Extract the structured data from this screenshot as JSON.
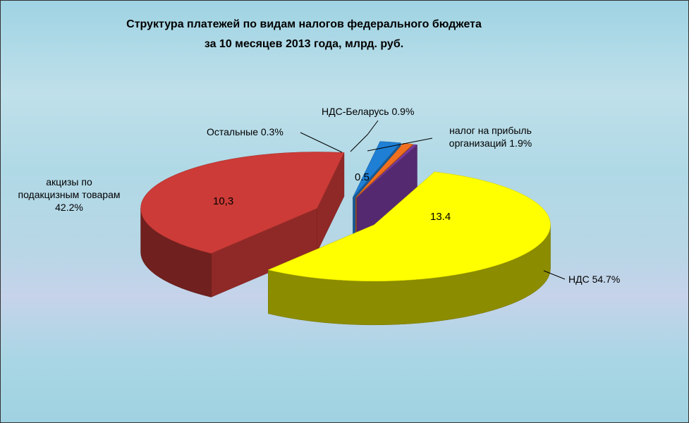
{
  "chart_data": {
    "type": "pie",
    "title": "Структура платежей по видам налогов федерального бюджета\nза 10 месяцев  2013 года, млрд. руб.",
    "categories": [
      "НДС",
      "акцизы по\nподакцизным товарам",
      "налог на прибыль\nорганизаций",
      "НДС-Беларусь",
      "Остальные"
    ],
    "values": [
      54.7,
      42.2,
      1.9,
      0.9,
      0.3
    ],
    "value_labels": [
      "54.7%",
      "42.2%",
      "1.9%",
      "0.9%",
      "0.3%"
    ],
    "colors": [
      "#ffff00",
      "#cc3b37",
      "#1f7fd4",
      "#f07020",
      "#7a3aa0"
    ],
    "amounts": [
      13.4,
      10.3,
      0.5,
      null,
      null
    ],
    "amount_labels": [
      null,
      "10,3",
      null,
      null,
      null
    ]
  }
}
